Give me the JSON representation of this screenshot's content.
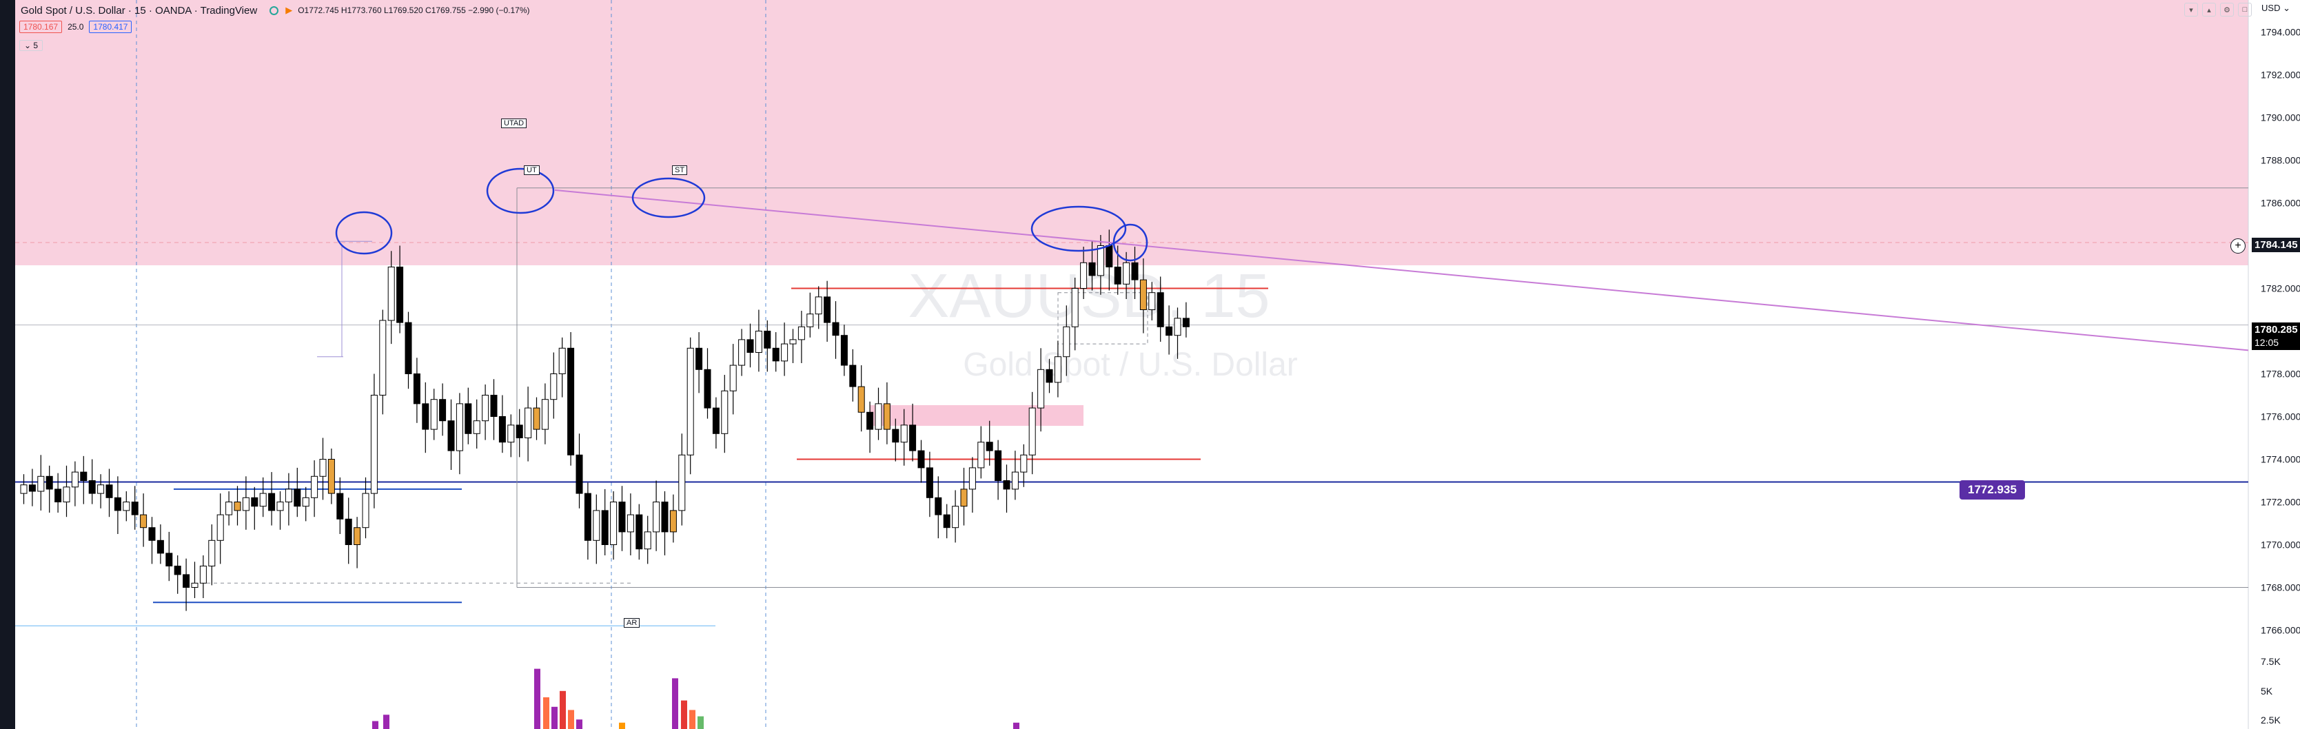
{
  "header": {
    "title": "Gold Spot / U.S. Dollar · 15 · OANDA · TradingView",
    "ohlc": "O1772.745 H1773.760 L1769.520 C1769.755 −2.990 (−0.17%)",
    "sell_price": "1780.167",
    "spread": "25.0",
    "buy_price": "1780.417",
    "collapse_label": "5",
    "currency": "USD"
  },
  "watermark": {
    "symbol": "XAUUSD, 15",
    "description": "Gold Spot / U.S. Dollar"
  },
  "annotations": [
    "UTAD",
    "UT",
    "ST",
    "AR"
  ],
  "price_labels": {
    "crosshair": "1784.145",
    "last_price": "1780.285",
    "countdown": "12:05",
    "level": "1772.935"
  },
  "colors": {
    "up": "#ffffff",
    "down": "#000000",
    "highlight": "#e8a33d",
    "supply_zone": "#f9c7d9",
    "trendline": "#c77bd6",
    "blue_level": "#1a2a9e",
    "red_level": "#e53935",
    "circle": "#1f3ad6",
    "level_label": "#5a2ea6"
  },
  "chart_data": {
    "type": "candlestick",
    "x_unit": "15-minute bars",
    "ylim": [
      1765.5,
      1795.5
    ],
    "yticks": [
      1766,
      1768,
      1770,
      1772,
      1774,
      1776,
      1778,
      1780,
      1782,
      1784,
      1786,
      1788,
      1790,
      1792,
      1794
    ],
    "ytick_labels": [
      "1766.000",
      "1768.000",
      "1770.000",
      "1772.000",
      "1774.000",
      "1776.000",
      "1778.000",
      "1780.000",
      "1782.000",
      "1784.000",
      "1786.000",
      "1788.000",
      "1790.000",
      "1792.000",
      "1794.000"
    ],
    "volume_ticks": [
      "7.5K",
      "5K",
      "2.5K"
    ],
    "closes": [
      1772.8,
      1772.5,
      1773.2,
      1772.6,
      1772.0,
      1772.7,
      1773.4,
      1773.0,
      1772.4,
      1772.8,
      1772.2,
      1771.6,
      1772.0,
      1771.4,
      1770.8,
      1770.2,
      1769.6,
      1769.0,
      1768.6,
      1768.0,
      1768.2,
      1769.0,
      1770.2,
      1771.4,
      1772.0,
      1771.6,
      1772.2,
      1771.8,
      1772.4,
      1771.6,
      1772.0,
      1772.6,
      1771.8,
      1772.2,
      1773.2,
      1774.0,
      1772.4,
      1771.2,
      1770.0,
      1770.8,
      1772.4,
      1777.0,
      1780.5,
      1783.0,
      1780.4,
      1778.0,
      1776.6,
      1775.4,
      1776.8,
      1775.8,
      1774.4,
      1776.6,
      1775.2,
      1775.8,
      1777.0,
      1776.0,
      1774.8,
      1775.6,
      1775.0,
      1776.4,
      1775.4,
      1776.8,
      1778.0,
      1779.2,
      1774.2,
      1772.4,
      1770.2,
      1771.6,
      1770.0,
      1772.0,
      1770.6,
      1771.4,
      1769.8,
      1770.6,
      1772.0,
      1770.6,
      1771.6,
      1774.2,
      1779.2,
      1778.2,
      1776.4,
      1775.2,
      1777.2,
      1778.4,
      1779.6,
      1779.0,
      1780.0,
      1779.2,
      1778.6,
      1779.4,
      1779.6,
      1780.2,
      1780.8,
      1781.6,
      1780.4,
      1779.8,
      1778.4,
      1777.4,
      1776.2,
      1775.4,
      1776.6,
      1775.4,
      1774.8,
      1775.6,
      1774.4,
      1773.6,
      1772.2,
      1771.4,
      1770.8,
      1771.8,
      1772.6,
      1773.6,
      1774.8,
      1774.4,
      1773.0,
      1772.6,
      1773.4,
      1774.2,
      1776.4,
      1778.2,
      1777.6,
      1778.8,
      1780.2,
      1782.0,
      1783.2,
      1782.6,
      1784.0,
      1783.0,
      1782.2,
      1783.2,
      1782.4,
      1781.0,
      1781.8,
      1780.2,
      1779.8,
      1780.6,
      1780.2
    ]
  }
}
